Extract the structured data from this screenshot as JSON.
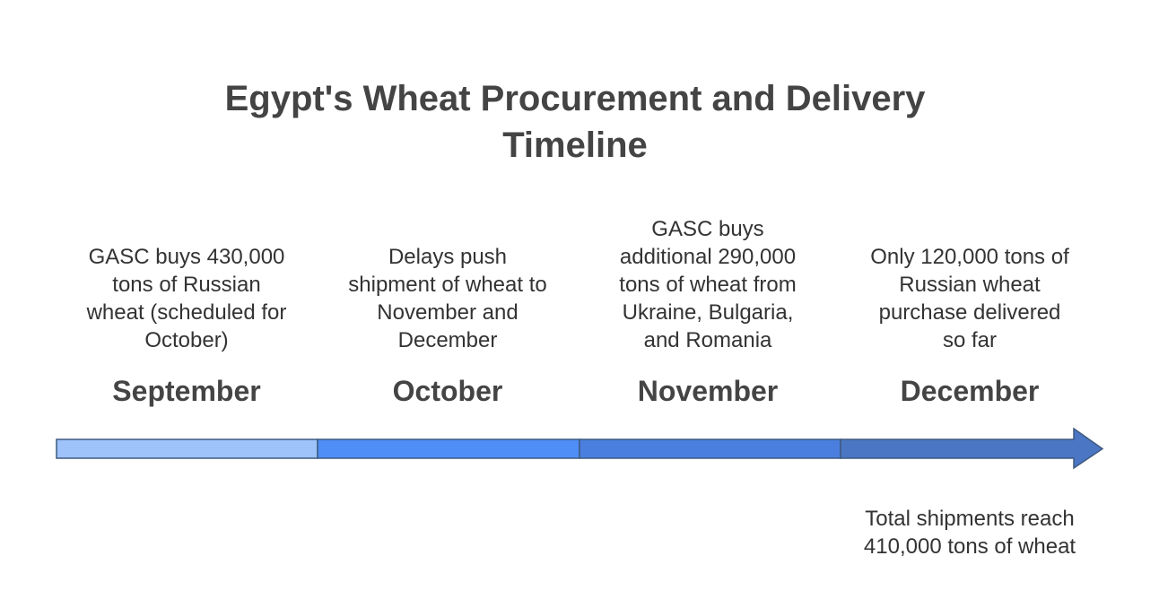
{
  "title": "Egypt's Wheat Procurement and Delivery Timeline",
  "events": [
    {
      "month": "September",
      "description": [
        "GASC buys 430,000",
        "tons of Russian",
        "wheat (scheduled for",
        "October)"
      ]
    },
    {
      "month": "October",
      "description": [
        "Delays push",
        "shipment of wheat to",
        "November and",
        "December"
      ]
    },
    {
      "month": "November",
      "description": [
        "GASC buys",
        "additional 290,000",
        "tons of wheat from",
        "Ukraine, Bulgaria,",
        "and Romania"
      ]
    },
    {
      "month": "December",
      "description": [
        "Only 120,000 tons of",
        "Russian wheat",
        "purchase delivered",
        "so far"
      ]
    }
  ],
  "note": [
    "Total shipments reach",
    "410,000 tons of wheat"
  ]
}
